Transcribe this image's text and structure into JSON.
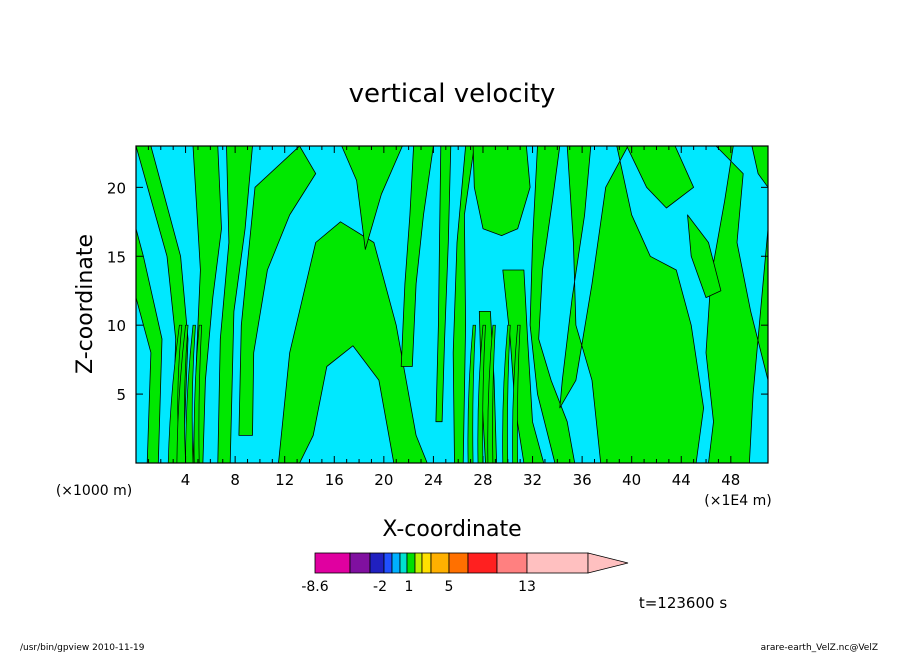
{
  "chart_data": {
    "type": "heatmap",
    "title": "vertical velocity",
    "xlabel": "X-coordinate",
    "ylabel": "Z-coordinate",
    "x_unit_left": "(×1000 m)",
    "x_unit_right": "(×1E4 m)",
    "xlim": [
      0,
      51
    ],
    "ylim": [
      0,
      23
    ],
    "x_ticks": [
      "4",
      "8",
      "12",
      "16",
      "20",
      "24",
      "28",
      "32",
      "36",
      "40",
      "44",
      "48"
    ],
    "y_ticks": [
      "5",
      "10",
      "15",
      "20"
    ],
    "levels_colors": [
      "#e000a0",
      "#8010a0",
      "#2020c0",
      "#2050ff",
      "#00b0ff",
      "#00e0d0",
      "#00e000",
      "#c0f000",
      "#ffe000",
      "#ffb000",
      "#ff7000",
      "#ff2020",
      "#ff8080",
      "#ffc0c0"
    ],
    "colorbar_labels": [
      "-8.6",
      "-2",
      "1",
      "5",
      "13"
    ],
    "dominant_fill_colors": {
      "negative": "#00e8ff",
      "positive": "#00e800"
    },
    "time_label": "t=123600 s"
  },
  "footer": {
    "left": "/usr/bin/gpview  2010-11-19",
    "right": "arare-earth_VelZ.nc@VelZ"
  }
}
